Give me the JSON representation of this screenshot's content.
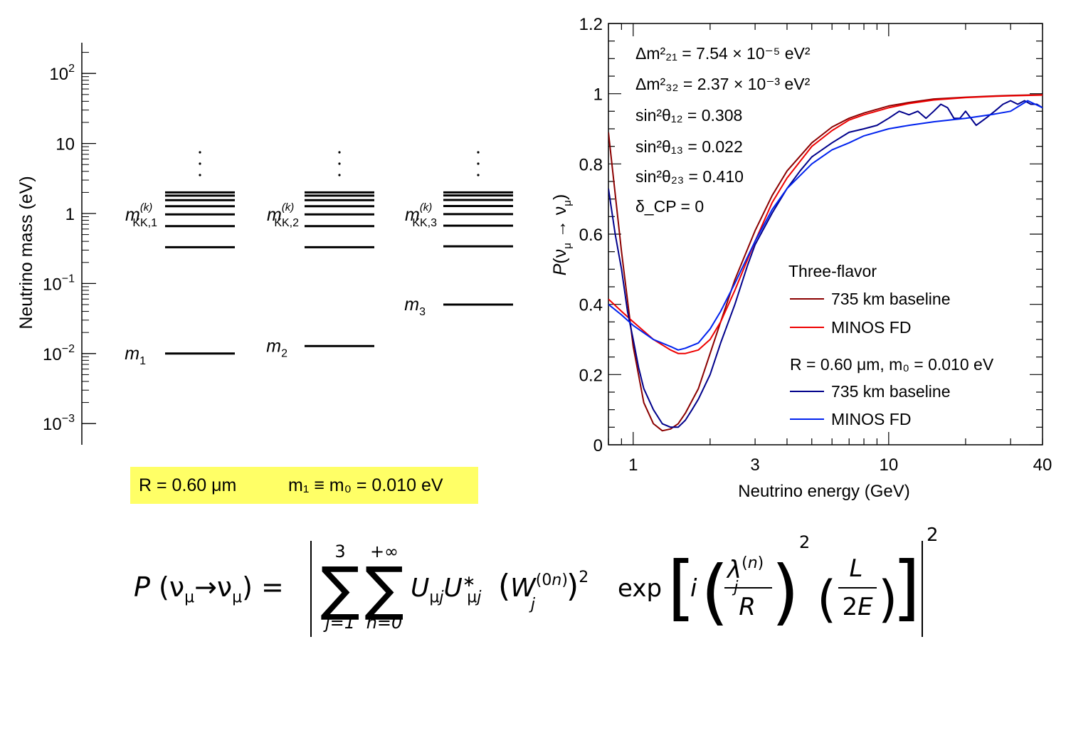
{
  "left_panel": {
    "ylabel": "Neutrino mass (eV)",
    "yticks": [
      "10",
      "10",
      "1",
      "10",
      "10",
      "10"
    ],
    "ytick_exp": [
      "2",
      "",
      "",
      "−1",
      "−2",
      "−3"
    ],
    "ytick_values": [
      100,
      10,
      1,
      0.1,
      0.01,
      0.001
    ],
    "dots": "·\n·\n·",
    "columns": [
      {
        "kk_label": "m",
        "kk_sup": "(k)",
        "kk_sub": "KK,1",
        "base_label": "m",
        "base_sub": "1",
        "base_mass": 0.01,
        "kk_masses": [
          0.33,
          0.66,
          0.97,
          1.27,
          1.55,
          1.8,
          2.0
        ]
      },
      {
        "kk_label": "m",
        "kk_sup": "(k)",
        "kk_sub": "KK,2",
        "base_label": "m",
        "base_sub": "2",
        "base_mass": 0.0128,
        "kk_masses": [
          0.33,
          0.66,
          0.97,
          1.27,
          1.55,
          1.8,
          2.0
        ]
      },
      {
        "kk_label": "m",
        "kk_sup": "(k)",
        "kk_sub": "KK,3",
        "base_label": "m",
        "base_sub": "3",
        "base_mass": 0.05,
        "kk_masses": [
          0.34,
          0.67,
          0.98,
          1.28,
          1.56,
          1.81,
          2.0
        ]
      }
    ],
    "params_box": {
      "r_part": "R = 0.60 μm",
      "m_part": "m₁ ≡ m₀ = 0.010 eV",
      "bg_color": "#ffff66"
    }
  },
  "chart_data": {
    "type": "line",
    "xlabel": "Neutrino energy (GeV)",
    "ylabel": "P(ν_μ → ν_μ)",
    "xscale": "log",
    "xlim": [
      0.8,
      40
    ],
    "ylim": [
      0,
      1.2
    ],
    "xticks": [
      "1",
      "3",
      "10",
      "40"
    ],
    "xtick_values": [
      1,
      3,
      10,
      40
    ],
    "yticks": [
      "0",
      "0.2",
      "0.4",
      "0.6",
      "0.8",
      "1",
      "1.2"
    ],
    "ytick_values": [
      0,
      0.2,
      0.4,
      0.6,
      0.8,
      1.0,
      1.2
    ],
    "annotations": [
      "Δm²₂₁ = 7.54 × 10⁻⁵ eV²",
      "Δm²₃₂ = 2.37 × 10⁻³ eV²",
      "sin²θ₁₂ = 0.308",
      "sin²θ₁₃ = 0.022",
      "sin²θ₂₃ = 0.410",
      "δ_CP = 0"
    ],
    "legend": {
      "group1_title": "Three-flavor",
      "group2_title": "R = 0.60 μm, m₀ = 0.010 eV",
      "entries": [
        "735 km baseline",
        "MINOS FD",
        "735 km baseline",
        "MINOS FD"
      ]
    },
    "series": [
      {
        "name": "Three-flavor 735 km baseline",
        "color": "#8b0000",
        "x": [
          0.8,
          0.9,
          1.0,
          1.1,
          1.2,
          1.3,
          1.4,
          1.5,
          1.6,
          1.8,
          2.0,
          2.2,
          2.5,
          3.0,
          3.5,
          4.0,
          5.0,
          6.0,
          7.0,
          8.0,
          10,
          12,
          15,
          20,
          25,
          30,
          40
        ],
        "y": [
          0.89,
          0.55,
          0.28,
          0.12,
          0.06,
          0.04,
          0.045,
          0.06,
          0.09,
          0.16,
          0.26,
          0.35,
          0.47,
          0.61,
          0.71,
          0.78,
          0.86,
          0.905,
          0.93,
          0.945,
          0.965,
          0.975,
          0.985,
          0.99,
          0.993,
          0.995,
          0.997
        ]
      },
      {
        "name": "Three-flavor MINOS FD",
        "color": "#ee0000",
        "x": [
          0.8,
          0.9,
          1.0,
          1.2,
          1.4,
          1.5,
          1.6,
          1.8,
          2.0,
          2.2,
          2.5,
          3.0,
          3.5,
          4.0,
          5.0,
          6.0,
          7.0,
          8.0,
          10,
          12,
          15,
          20,
          25,
          30,
          40
        ],
        "y": [
          0.415,
          0.38,
          0.35,
          0.3,
          0.27,
          0.26,
          0.26,
          0.27,
          0.3,
          0.35,
          0.44,
          0.58,
          0.69,
          0.76,
          0.85,
          0.895,
          0.925,
          0.94,
          0.96,
          0.972,
          0.982,
          0.989,
          0.992,
          0.994,
          0.996
        ]
      },
      {
        "name": "735 km baseline (R = 0.60 μm, m₀ = 0.010 eV)",
        "color": "#00008b",
        "x": [
          0.8,
          0.85,
          0.9,
          0.95,
          1.0,
          1.05,
          1.1,
          1.2,
          1.3,
          1.4,
          1.5,
          1.6,
          1.7,
          1.8,
          2.0,
          2.2,
          2.5,
          2.8,
          3.0,
          3.5,
          4.0,
          4.5,
          5.0,
          6.0,
          7.0,
          8.0,
          9.0,
          10,
          11,
          12,
          13,
          14,
          15,
          16,
          17,
          18,
          19,
          20,
          22,
          24,
          26,
          28,
          30,
          32,
          34,
          36,
          38,
          40
        ],
        "y": [
          0.73,
          0.6,
          0.5,
          0.38,
          0.3,
          0.22,
          0.16,
          0.1,
          0.06,
          0.05,
          0.05,
          0.07,
          0.1,
          0.13,
          0.2,
          0.29,
          0.4,
          0.51,
          0.57,
          0.66,
          0.73,
          0.78,
          0.82,
          0.86,
          0.89,
          0.9,
          0.91,
          0.93,
          0.95,
          0.94,
          0.95,
          0.93,
          0.95,
          0.97,
          0.96,
          0.93,
          0.93,
          0.95,
          0.91,
          0.93,
          0.95,
          0.97,
          0.98,
          0.97,
          0.98,
          0.97,
          0.97,
          0.96
        ]
      },
      {
        "name": "MINOS FD (R = 0.60 μm, m₀ = 0.010 eV)",
        "color": "#0022ee",
        "x": [
          0.8,
          0.9,
          1.0,
          1.2,
          1.4,
          1.5,
          1.6,
          1.8,
          2.0,
          2.2,
          2.5,
          3.0,
          3.5,
          4.0,
          5.0,
          6.0,
          7.0,
          8.0,
          10,
          12,
          15,
          20,
          25,
          30,
          35,
          40
        ],
        "y": [
          0.4,
          0.37,
          0.34,
          0.3,
          0.28,
          0.27,
          0.275,
          0.29,
          0.33,
          0.38,
          0.46,
          0.58,
          0.67,
          0.73,
          0.8,
          0.84,
          0.86,
          0.88,
          0.9,
          0.91,
          0.92,
          0.93,
          0.94,
          0.95,
          0.98,
          0.96
        ]
      }
    ]
  },
  "formula": {
    "lhs": "P (νμ→νμ) =",
    "sum1_top": "3",
    "sum1_bottom": "j=1",
    "sum2_top": "+∞",
    "sum2_bottom": "n=0",
    "uu": "UμjU*μj",
    "w": "(W",
    "w_sup": "(0n)",
    "w_sub": "j",
    "w_close": ")",
    "w_pow": "2",
    "exp": "exp",
    "i": "i",
    "lambda": "λ",
    "lambda_sup": "(n)",
    "lambda_sub": "j",
    "R": "R",
    "paren_pow": "2",
    "L": "L",
    "twoE": "2E",
    "outer_pow": "2"
  }
}
